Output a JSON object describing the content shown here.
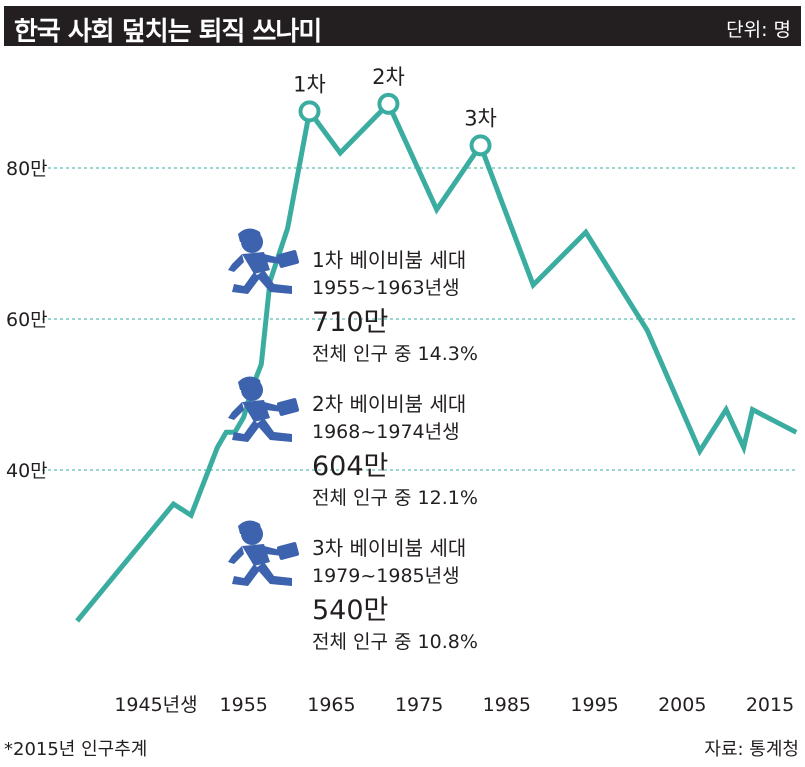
{
  "header": {
    "title": "한국 사회 덮치는 퇴직 쓰나미",
    "unit": "단위: 명"
  },
  "footer": {
    "note": "*2015년 인구추계",
    "source": "자료: 통계청"
  },
  "generations": [
    {
      "name": "1차 베이비붐 세대",
      "years": "1955~1963년생",
      "count": "710만",
      "share": "전체 인구 중 14.3%"
    },
    {
      "name": "2차 베이비붐 세대",
      "years": "1968~1974년생",
      "count": "604만",
      "share": "전체 인구 중 12.1%"
    },
    {
      "name": "3차 베이비붐 세대",
      "years": "1979~1985년생",
      "count": "540만",
      "share": "전체 인구 중 10.8%"
    }
  ],
  "colors": {
    "line": "#3aada0",
    "gridline": "#3aada0",
    "icon": "#3d63ae",
    "title_bg": "#231f20"
  },
  "chart_data": {
    "type": "line",
    "xlabel": "",
    "ylabel": "",
    "x_tick_labels": [
      "1945년생",
      "1955",
      "1965",
      "1975",
      "1985",
      "1995",
      "2005",
      "2015"
    ],
    "x_ticks": [
      1945,
      1955,
      1965,
      1975,
      1985,
      1995,
      2005,
      2015
    ],
    "y_tick_labels": [
      "40만",
      "60만",
      "80만"
    ],
    "y_ticks": [
      400000,
      600000,
      800000
    ],
    "xlim": [
      1945,
      2015
    ],
    "ylim": [
      150000,
      900000
    ],
    "grid": "dashed horizontal",
    "series": [
      {
        "x": [
          1936,
          1947,
          1949,
          1952,
          1953,
          1954,
          1955,
          1956,
          1957,
          1958,
          1960,
          1962.5,
          1966,
          1971.5,
          1977,
          1982,
          1988,
          1994,
          2001,
          2007,
          2010,
          2012,
          2013,
          2018
        ],
        "y": [
          200000,
          355000,
          340000,
          430000,
          450000,
          450000,
          470000,
          510000,
          540000,
          650000,
          720000,
          875000,
          820000,
          885000,
          745000,
          830000,
          645000,
          715000,
          585000,
          425000,
          480000,
          430000,
          480000,
          450000
        ]
      }
    ],
    "annotations": [
      {
        "label": "1차",
        "x": 1962.5,
        "y": 875000
      },
      {
        "label": "2차",
        "x": 1971.5,
        "y": 885000
      },
      {
        "label": "3차",
        "x": 1982,
        "y": 830000
      }
    ]
  }
}
